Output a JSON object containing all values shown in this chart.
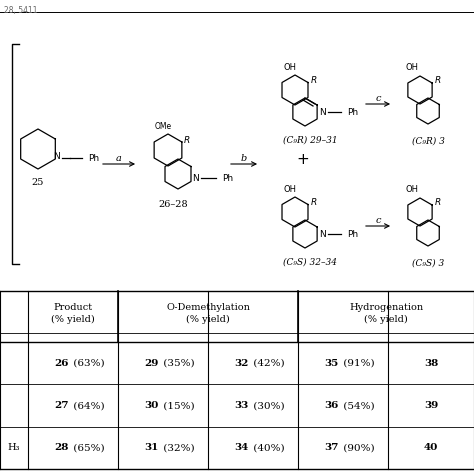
{
  "header_text": "28, 5411",
  "bg_color": "#ffffff",
  "table": {
    "rows": [
      {
        "r_label": "",
        "product": "26 (63%)",
        "odem1": "29 (35%)",
        "odem2": "32 (42%)",
        "hydro1": "35 (91%)",
        "hydro2": "38"
      },
      {
        "r_label": "",
        "product": "27 (64%)",
        "odem1": "30 (15%)",
        "odem2": "33 (30%)",
        "hydro1": "36 (54%)",
        "hydro2": "39"
      },
      {
        "r_label": "H₃",
        "product": "28 (65%)",
        "odem1": "31 (32%)",
        "odem2": "34 (40%)",
        "hydro1": "37 (90%)",
        "hydro2": "40"
      }
    ]
  },
  "scheme": {
    "label_25": "25",
    "label_2628": "26–28",
    "arrow_a": "a",
    "arrow_b": "b",
    "arrow_c": "c",
    "label_CR": "(C₉R) 29–31",
    "label_CS": "(C₉S) 32–34",
    "label_CR2": "(C₉R) 3",
    "label_CS2": "(C₉S) 3",
    "plus": "+"
  }
}
